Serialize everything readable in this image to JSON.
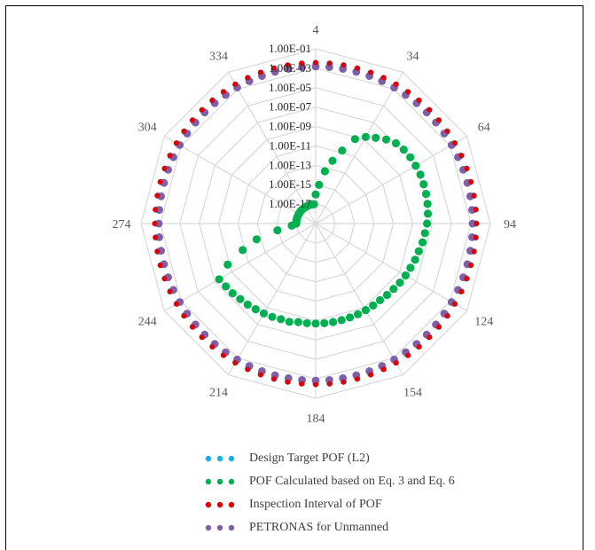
{
  "chart_data": {
    "type": "radar",
    "title": "",
    "axis": {
      "scale": "log",
      "min": 1e-19,
      "max": 0.1,
      "tick_labels": [
        "1.00E-01",
        "1.00E-03",
        "1.00E-05",
        "1.00E-07",
        "1.00E-09",
        "1.00E-11",
        "1.00E-13",
        "1.00E-15",
        "1.00E-17"
      ],
      "tick_exponents": [
        -1,
        -3,
        -5,
        -7,
        -9,
        -11,
        -13,
        -15,
        -17
      ],
      "grid": true
    },
    "category_labels": [
      "4",
      "34",
      "64",
      "94",
      "124",
      "154",
      "184",
      "214",
      "244",
      "274",
      "304",
      "334"
    ],
    "categories": [
      4,
      9,
      14,
      19,
      24,
      29,
      34,
      39,
      44,
      49,
      54,
      59,
      64,
      69,
      74,
      79,
      84,
      89,
      94,
      99,
      104,
      109,
      114,
      119,
      124,
      129,
      134,
      139,
      144,
      149,
      154,
      159,
      164,
      169,
      174,
      179,
      184,
      189,
      194,
      199,
      204,
      209,
      214,
      219,
      224,
      229,
      234,
      239,
      244,
      249,
      254,
      259,
      264,
      269,
      274,
      279,
      284,
      289,
      294,
      299,
      304,
      309,
      314,
      319,
      324,
      329,
      334,
      339,
      344,
      349,
      354,
      359
    ],
    "legend_position": "bottom",
    "series": [
      {
        "name": "Design Target POF (L2)",
        "color": "#1ab0e6",
        "values": [
          0.0032,
          0.0032,
          0.0032,
          0.0032,
          0.0032,
          0.0032,
          0.0032,
          0.0032,
          0.0032,
          0.0032,
          0.0032,
          0.0032,
          0.0032,
          0.0032,
          0.0032,
          0.0032,
          0.0032,
          0.0032,
          0.0032,
          0.0032,
          0.0032,
          0.0032,
          0.0032,
          0.0032,
          0.0032,
          0.0032,
          0.0032,
          0.0032,
          0.0032,
          0.0032,
          0.0032,
          0.0032,
          0.0032,
          0.0032,
          0.0032,
          0.0032,
          0.0032,
          0.0032,
          0.0032,
          0.0032,
          0.0032,
          0.0032,
          0.0032,
          0.0032,
          0.0032,
          0.0032,
          0.0032,
          0.0032,
          0.0032,
          0.0032,
          0.0032,
          0.0032,
          0.0032,
          0.0032,
          0.0032,
          0.0032,
          0.0032,
          0.0032,
          0.0032,
          0.0032,
          0.0032,
          0.0032,
          0.0032,
          0.0032,
          0.0032,
          0.0032,
          0.0032,
          0.0032,
          0.0032,
          0.0032,
          0.0032,
          0.0032
        ]
      },
      {
        "name": "POF Calculated based on Eq. 3 and Eq. 6",
        "color": "#00b050",
        "values": [
          1e-16,
          1e-15,
          3e-14,
          5e-13,
          1e-11,
          4e-10,
          2e-09,
          6e-09,
          2e-08,
          5e-08,
          7e-08,
          8e-08,
          8e-08,
          8e-08,
          7e-08,
          6e-08,
          5e-08,
          4e-08,
          3e-08,
          2e-08,
          1.5e-08,
          1e-08,
          8e-09,
          6e-09,
          5e-09,
          4e-09,
          3e-09,
          2.5e-09,
          2e-09,
          2e-09,
          2e-09,
          2e-09,
          2e-09,
          2e-09,
          2e-09,
          2e-09,
          2e-09,
          2e-09,
          2e-09,
          3e-09,
          3e-09,
          4e-09,
          5e-09,
          6e-09,
          8e-09,
          1e-08,
          1.5e-08,
          2e-08,
          3e-08,
          1e-09,
          1e-11,
          2e-13,
          1e-15,
          3e-17,
          1e-17,
          1e-17,
          1e-17,
          1e-17,
          1e-17,
          1e-17,
          1e-17,
          1e-17,
          1e-17,
          1e-17,
          1e-17,
          1e-17,
          1e-17,
          1e-17,
          1e-17,
          1e-17,
          1e-17,
          1e-17
        ]
      },
      {
        "name": "Inspection Interval of POF",
        "color": "#e10000",
        "values": [
          0.0038,
          0.0038,
          0.0038,
          0.0038,
          0.0038,
          0.0038,
          0.0038,
          0.0038,
          0.0038,
          0.0038,
          0.0038,
          0.0038,
          0.0038,
          0.0038,
          0.0038,
          0.0038,
          0.0038,
          0.0038,
          0.0038,
          0.0038,
          0.0038,
          0.0038,
          0.0038,
          0.0038,
          0.0038,
          0.0038,
          0.0038,
          0.0038,
          0.0038,
          0.0038,
          0.0038,
          0.0038,
          0.0038,
          0.0038,
          0.0038,
          0.0038,
          0.0038,
          0.0038,
          0.0038,
          0.0038,
          0.0038,
          0.0038,
          0.0038,
          0.0038,
          0.0038,
          0.0038,
          0.0038,
          0.0038,
          0.0038,
          0.0038,
          0.0038,
          0.0038,
          0.0038,
          0.0038,
          0.0038,
          0.0038,
          0.0038,
          0.0038,
          0.0038,
          0.0038,
          0.0038,
          0.0038,
          0.0038,
          0.0038,
          0.0038,
          0.0038,
          0.0038,
          0.0038,
          0.0038,
          0.0038,
          0.0038,
          0.0038
        ]
      },
      {
        "name": "PETRONAS for Unmanned",
        "color": "#7f5fa8",
        "values": [
          0.0015,
          0.0015,
          0.0015,
          0.0015,
          0.0015,
          0.0015,
          0.0015,
          0.0015,
          0.0015,
          0.0015,
          0.0015,
          0.0015,
          0.0015,
          0.0015,
          0.0015,
          0.0015,
          0.0015,
          0.0015,
          0.0015,
          0.0015,
          0.0015,
          0.0015,
          0.0015,
          0.0015,
          0.0015,
          0.0015,
          0.0015,
          0.0015,
          0.0015,
          0.0015,
          0.0015,
          0.0015,
          0.0015,
          0.0015,
          0.0015,
          0.0015,
          0.0015,
          0.0015,
          0.0015,
          0.0015,
          0.0015,
          0.0015,
          0.0015,
          0.0015,
          0.0015,
          0.0015,
          0.0015,
          0.0015,
          0.0015,
          0.0015,
          0.0015,
          0.0015,
          0.0015,
          0.0015,
          0.0015,
          0.0015,
          0.0015,
          0.0015,
          0.0015,
          0.0015,
          0.0015,
          0.0015,
          0.0015,
          0.0015,
          0.0015,
          0.0015,
          0.0015,
          0.0015,
          0.0015,
          0.0015,
          0.0015,
          0.0015
        ]
      }
    ]
  }
}
